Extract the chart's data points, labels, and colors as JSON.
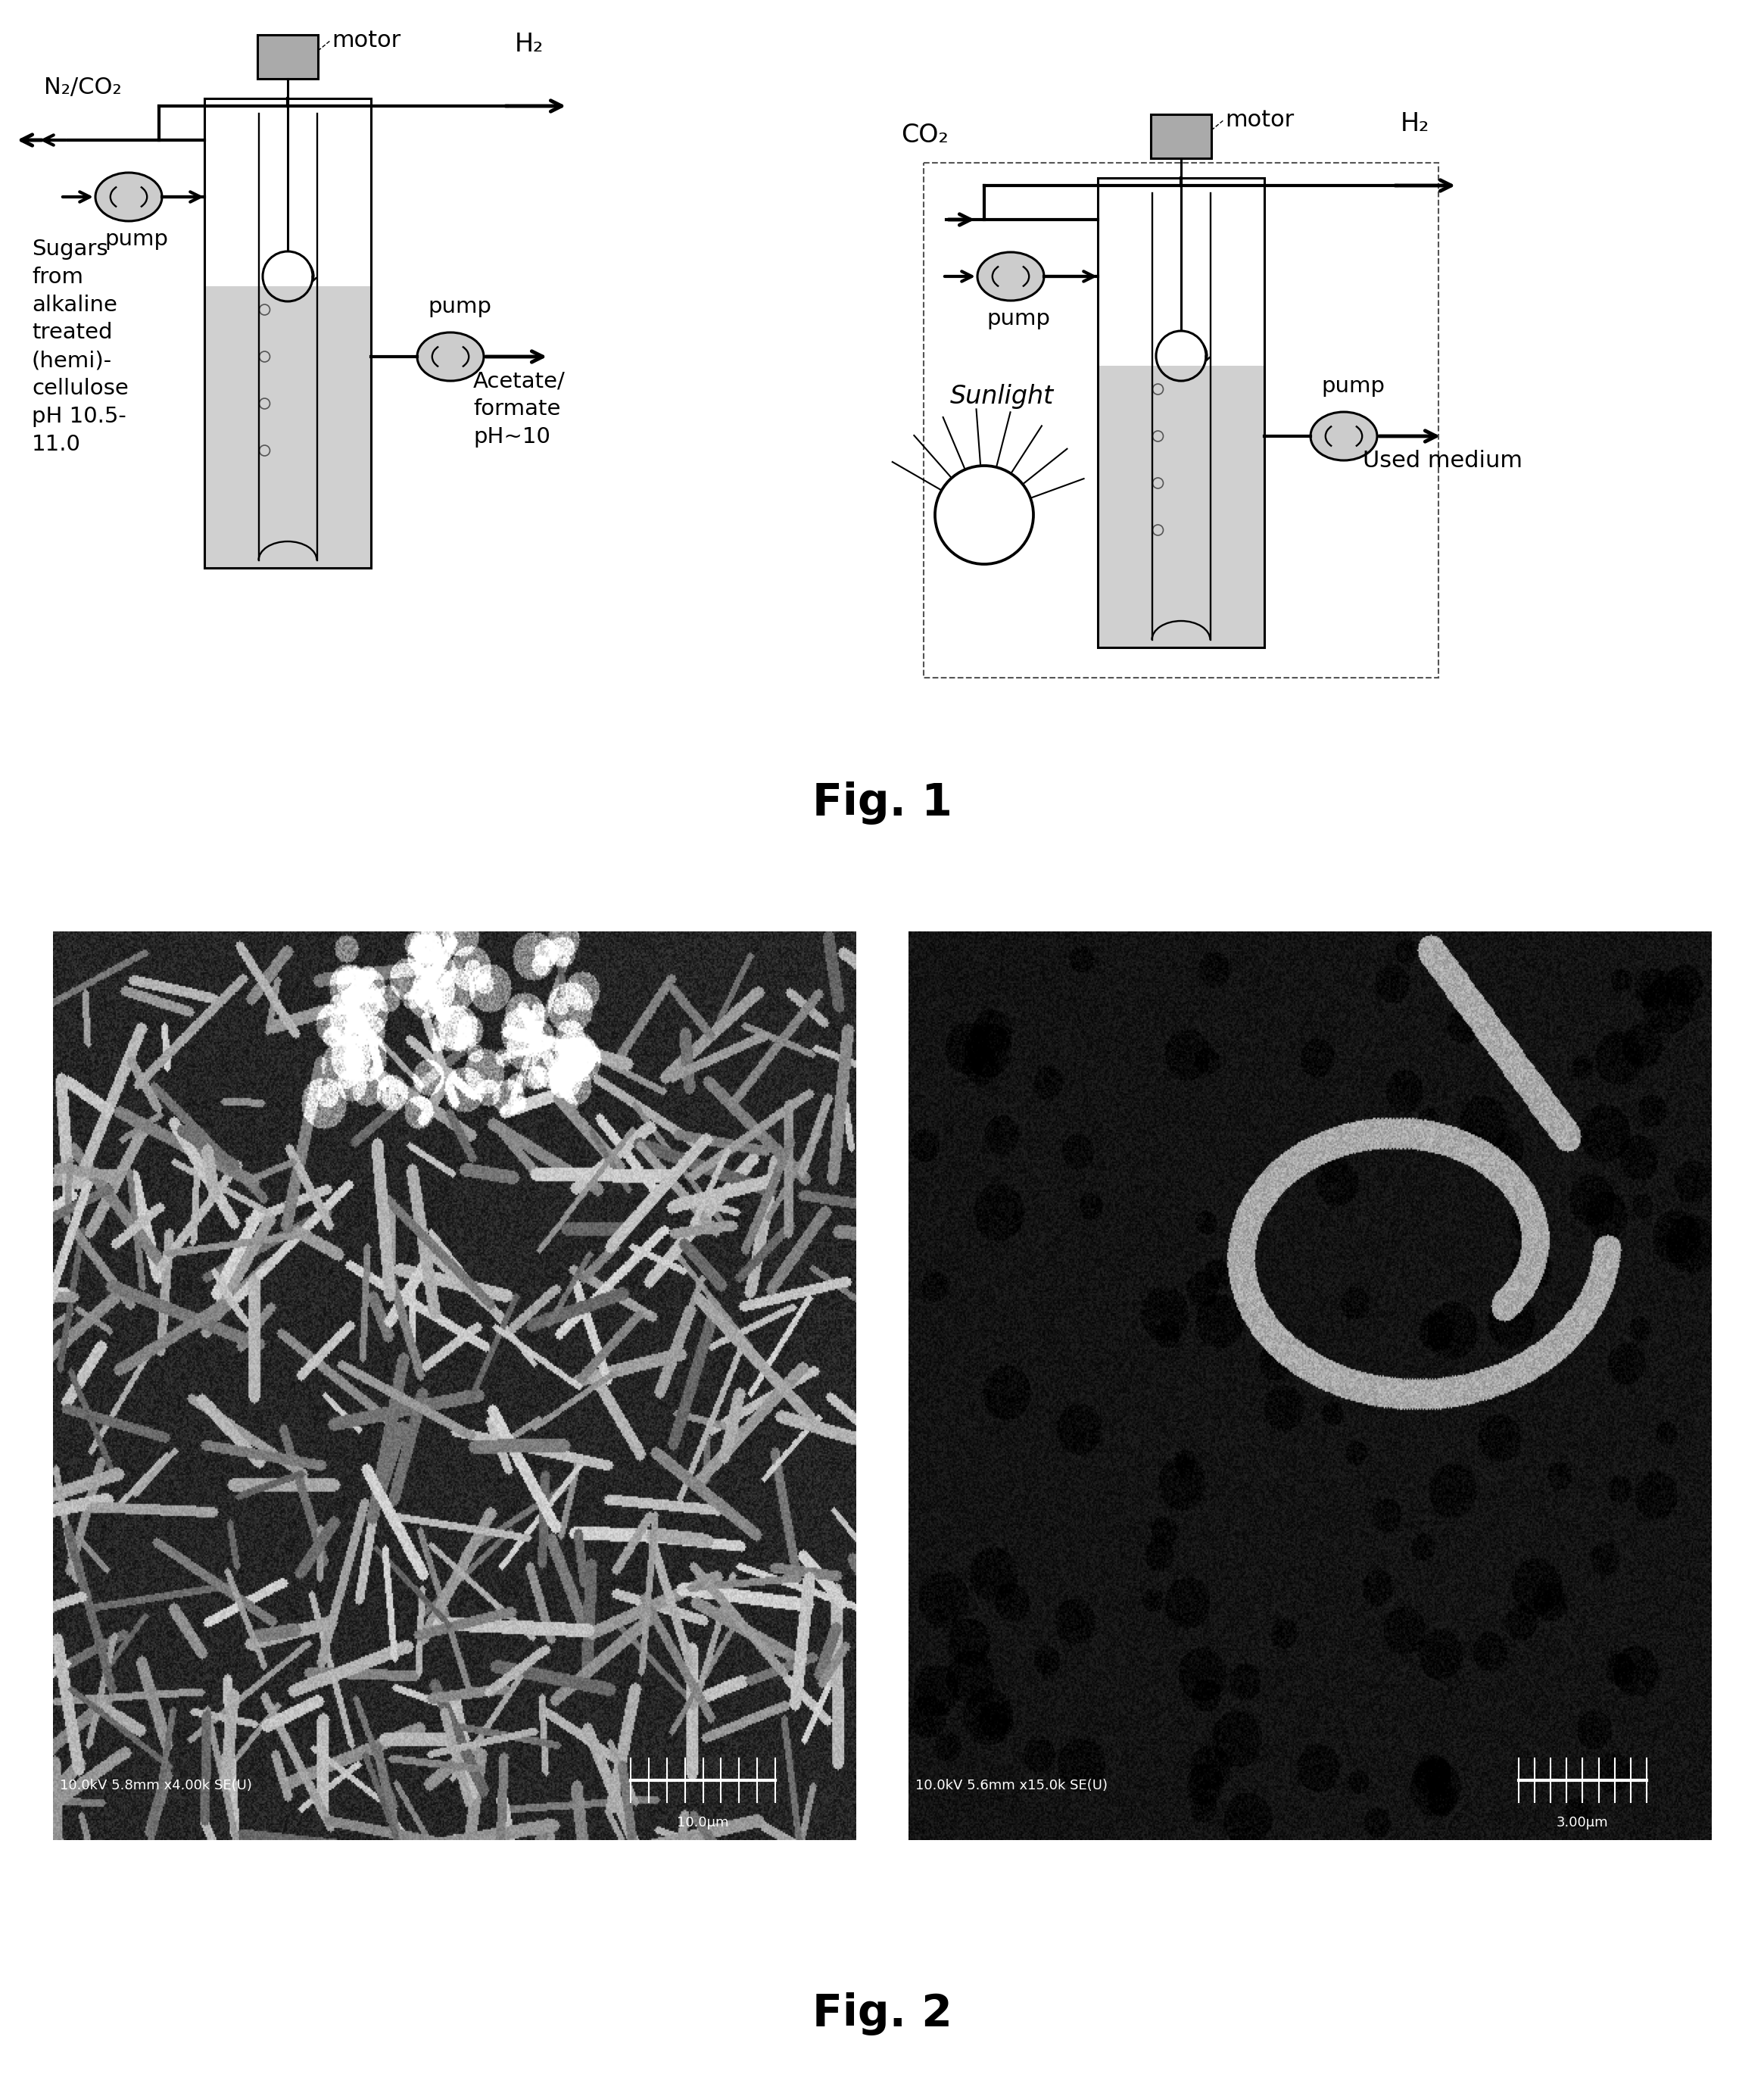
{
  "fig1_label": "Fig. 1",
  "fig2_label": "Fig. 2",
  "background_color": "#ffffff",
  "left_diagram": {
    "n2co2_label": "N₂/CO₂",
    "h2_label": "H₂",
    "pump_label": "pump",
    "motor_label": "motor",
    "pump2_label": "pump",
    "sugars_label": "Sugars\nfrom\nalkaline\ntreated\n(hemi)-\ncellulose\npH 10.5-\n11.0",
    "acetate_label": "Acetate/\nformate\npH~10"
  },
  "right_diagram": {
    "co2_label": "CO₂",
    "h2_label": "H₂",
    "pump_label": "pump",
    "motor_label": "motor",
    "pump2_label": "pump",
    "sunlight_label": "Sunlight",
    "used_medium_label": "Used medium"
  },
  "sem1_label": "10.0kV 5.8mm x4.00k SE(U)",
  "sem1_scale": "10.0μm",
  "sem2_label": "10.0kV 5.6mm x15.0k SE(U)",
  "sem2_scale": "3.00μm"
}
